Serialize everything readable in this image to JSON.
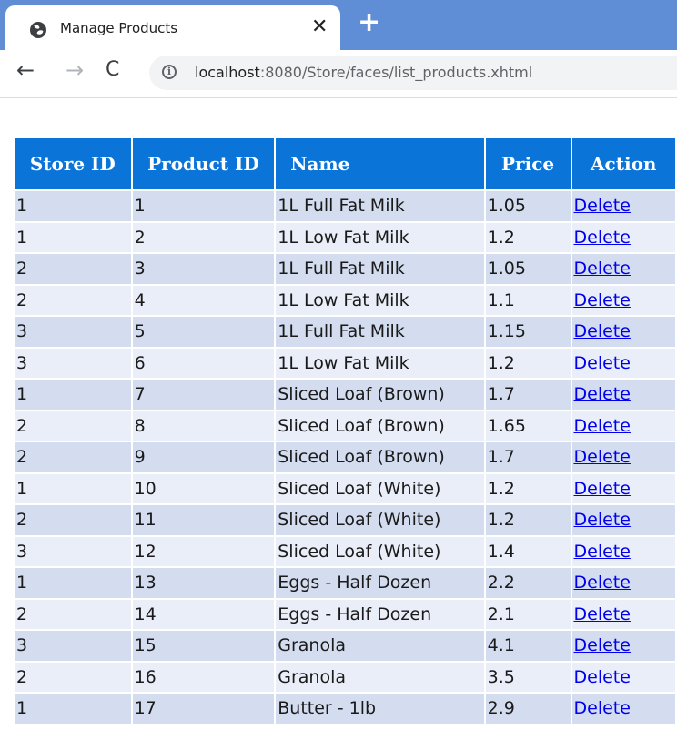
{
  "browser": {
    "tab_title": "Manage Products",
    "tab_close": "✕",
    "new_tab": "+",
    "back": "←",
    "forward": "→",
    "reload": "C",
    "info": "i",
    "url_host": "localhost",
    "url_rest": ":8080/Store/faces/list_products.xhtml"
  },
  "table": {
    "headers": [
      "Store ID",
      "Product ID",
      "Name",
      "Price",
      "Action"
    ],
    "action_label": "Delete",
    "rows": [
      {
        "store_id": "1",
        "product_id": "1",
        "name": "1L Full Fat Milk",
        "price": "1.05"
      },
      {
        "store_id": "1",
        "product_id": "2",
        "name": "1L Low Fat Milk",
        "price": "1.2"
      },
      {
        "store_id": "2",
        "product_id": "3",
        "name": "1L Full Fat Milk",
        "price": "1.05"
      },
      {
        "store_id": "2",
        "product_id": "4",
        "name": "1L Low Fat Milk",
        "price": "1.1"
      },
      {
        "store_id": "3",
        "product_id": "5",
        "name": "1L Full Fat Milk",
        "price": "1.15"
      },
      {
        "store_id": "3",
        "product_id": "6",
        "name": "1L Low Fat Milk",
        "price": "1.2"
      },
      {
        "store_id": "1",
        "product_id": "7",
        "name": "Sliced Loaf (Brown)",
        "price": "1.7"
      },
      {
        "store_id": "2",
        "product_id": "8",
        "name": "Sliced Loaf (Brown)",
        "price": "1.65"
      },
      {
        "store_id": "2",
        "product_id": "9",
        "name": "Sliced Loaf (Brown)",
        "price": "1.7"
      },
      {
        "store_id": "1",
        "product_id": "10",
        "name": "Sliced Loaf (White)",
        "price": "1.2"
      },
      {
        "store_id": "2",
        "product_id": "11",
        "name": "Sliced Loaf (White)",
        "price": "1.2"
      },
      {
        "store_id": "3",
        "product_id": "12",
        "name": "Sliced Loaf (White)",
        "price": "1.4"
      },
      {
        "store_id": "1",
        "product_id": "13",
        "name": "Eggs - Half Dozen",
        "price": "2.2"
      },
      {
        "store_id": "2",
        "product_id": "14",
        "name": "Eggs - Half Dozen",
        "price": "2.1"
      },
      {
        "store_id": "3",
        "product_id": "15",
        "name": "Granola",
        "price": "4.1"
      },
      {
        "store_id": "2",
        "product_id": "16",
        "name": "Granola",
        "price": "3.5"
      },
      {
        "store_id": "1",
        "product_id": "17",
        "name": "Butter - 1lb",
        "price": "2.9"
      }
    ]
  },
  "colors": {
    "tabstrip": "#5f8ed6",
    "header_bg": "#0a74d8",
    "row_odd": "#d3ddef",
    "row_even": "#e9eef8",
    "link": "#0000ee"
  }
}
